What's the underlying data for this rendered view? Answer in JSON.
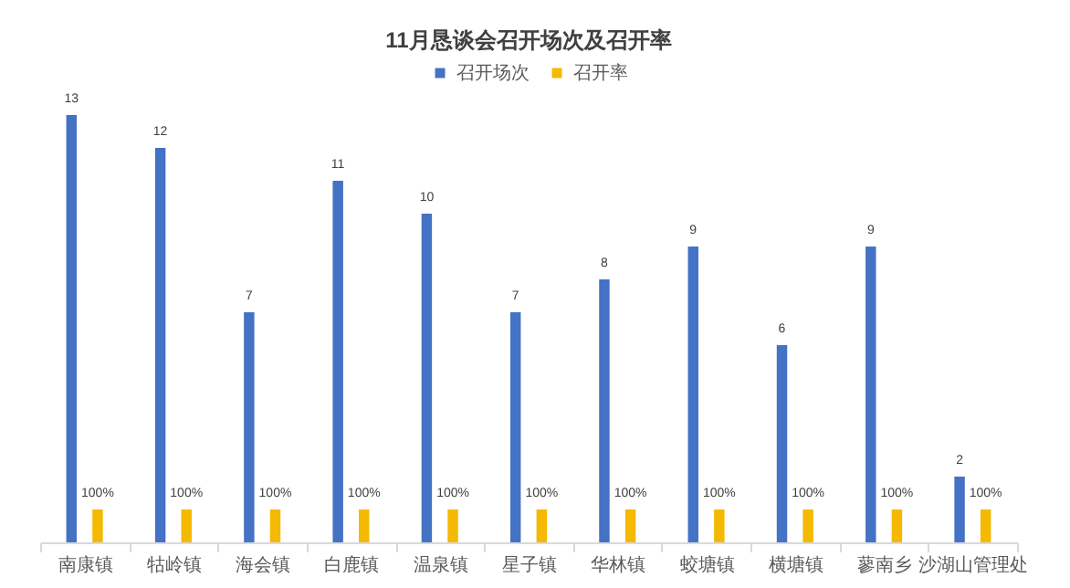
{
  "chart_data": {
    "type": "bar",
    "title": "11月恳谈会召开场次及召开率",
    "categories": [
      "南康镇",
      "牯岭镇",
      "海会镇",
      "白鹿镇",
      "温泉镇",
      "星子镇",
      "华林镇",
      "蛟塘镇",
      "横塘镇",
      "蓼南乡",
      "沙湖山管理处"
    ],
    "series": [
      {
        "name": "召开场次",
        "color": "#4472c4",
        "values": [
          13,
          12,
          7,
          11,
          10,
          7,
          8,
          9,
          6,
          9,
          2
        ]
      },
      {
        "name": "召开率",
        "color": "#f4b900",
        "values": [
          1,
          1,
          1,
          1,
          1,
          1,
          1,
          1,
          1,
          1,
          1
        ],
        "value_labels": [
          "100%",
          "100%",
          "100%",
          "100%",
          "100%",
          "100%",
          "100%",
          "100%",
          "100%",
          "100%",
          "100%"
        ]
      }
    ],
    "data_labels": true,
    "legend": "top",
    "grid": false
  }
}
